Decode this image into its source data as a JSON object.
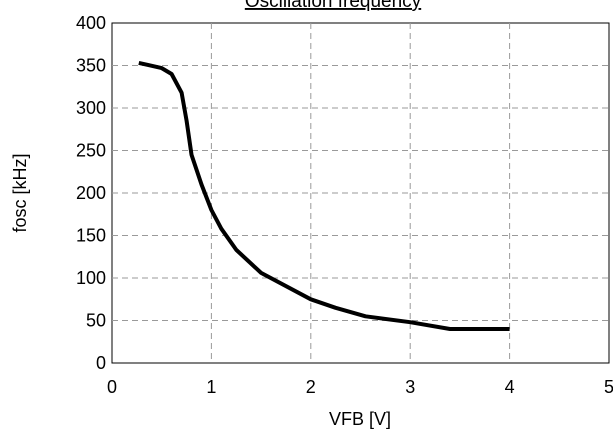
{
  "chart_data": {
    "type": "line",
    "title": "Oscillation frequency",
    "xlabel": "VFB [V]",
    "ylabel": "fosc [kHz]",
    "xlim": [
      0,
      5
    ],
    "ylim": [
      0,
      400
    ],
    "x_ticks": [
      0,
      1,
      2,
      3,
      4,
      5
    ],
    "y_ticks": [
      0,
      50,
      100,
      150,
      200,
      250,
      300,
      350,
      400
    ],
    "grid": true,
    "legend": "none",
    "series": [
      {
        "color": "#000000",
        "points": [
          [
            0.27,
            353
          ],
          [
            0.35,
            351
          ],
          [
            0.5,
            347
          ],
          [
            0.6,
            340
          ],
          [
            0.7,
            318
          ],
          [
            0.75,
            285
          ],
          [
            0.8,
            245
          ],
          [
            0.9,
            210
          ],
          [
            1.0,
            180
          ],
          [
            1.1,
            158
          ],
          [
            1.25,
            133
          ],
          [
            1.5,
            106
          ],
          [
            2.0,
            75
          ],
          [
            2.25,
            65
          ],
          [
            2.55,
            55
          ],
          [
            3.0,
            48
          ],
          [
            3.4,
            40
          ],
          [
            4.0,
            40
          ]
        ]
      }
    ]
  }
}
